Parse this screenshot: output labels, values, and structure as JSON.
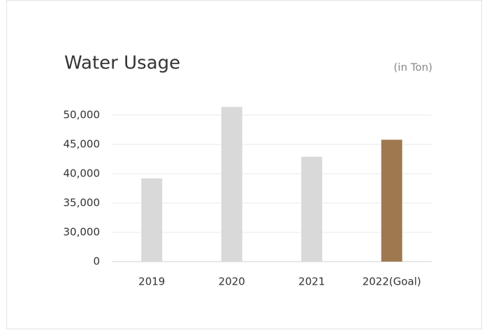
{
  "chart_data": {
    "type": "bar",
    "title": "Water Usage",
    "unit_label": "(in Ton)",
    "categories": [
      "2019",
      "2020",
      "2021",
      "2022(Goal)"
    ],
    "values": [
      39200,
      51400,
      42900,
      45800
    ],
    "colors": [
      "#d9d9d9",
      "#d9d9d9",
      "#d9d9d9",
      "#a07850"
    ],
    "ylim": [
      0,
      52000
    ],
    "yticks": [
      0,
      {
        "value": 30000,
        "label": "30,000"
      },
      {
        "value": 35000,
        "label": "35,000"
      },
      {
        "value": 40000,
        "label": "40,000"
      },
      {
        "value": 45000,
        "label": "45,000"
      },
      {
        "value": 50000,
        "label": "50,000"
      }
    ],
    "axis_break": true,
    "grid": true
  }
}
